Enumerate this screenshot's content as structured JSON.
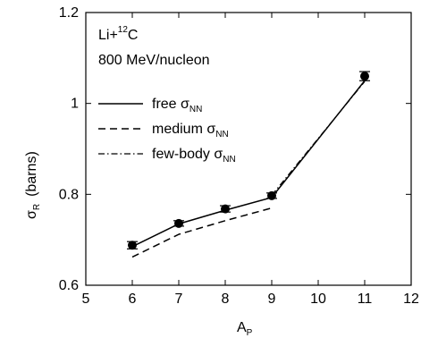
{
  "chart_data": {
    "type": "line",
    "annotation": {
      "reaction_prefix": "Li+",
      "reaction_mass": "12",
      "reaction_target": "C",
      "energy": "800 MeV/nucleon"
    },
    "xlabel": {
      "main": "A",
      "sub": "P"
    },
    "ylabel": {
      "main": "σ",
      "sub": "R",
      "unit": "(barns)"
    },
    "xlim": [
      5,
      12
    ],
    "ylim": [
      0.6,
      1.2
    ],
    "x_ticks": [
      5,
      6,
      7,
      8,
      9,
      10,
      11,
      12
    ],
    "y_ticks": [
      {
        "value": 0.6,
        "label": "0.6"
      },
      {
        "value": 0.8,
        "label": "0.8"
      },
      {
        "value": 1.0,
        "label": "1"
      },
      {
        "value": 1.2,
        "label": "1.2"
      }
    ],
    "legend_position": "left",
    "series": [
      {
        "name": "free",
        "name_sub": "NN",
        "dash": "solid",
        "x": [
          6,
          7,
          8,
          9,
          11
        ],
        "y": [
          0.685,
          0.735,
          0.765,
          0.793,
          1.05
        ]
      },
      {
        "name": "medium",
        "name_sub": "NN",
        "dash": "dashed",
        "x": [
          6,
          7,
          8,
          9
        ],
        "y": [
          0.662,
          0.712,
          0.742,
          0.77
        ]
      },
      {
        "name": "few-body",
        "name_sub": "NN",
        "dash": "dashdot",
        "x": [
          9,
          11
        ],
        "y": [
          0.798,
          1.048
        ]
      }
    ],
    "experimental": {
      "x": [
        6,
        7,
        8,
        9,
        11
      ],
      "y": [
        0.688,
        0.736,
        0.768,
        0.797,
        1.06
      ],
      "err": [
        0.008,
        0.006,
        0.007,
        0.006,
        0.01
      ]
    }
  }
}
